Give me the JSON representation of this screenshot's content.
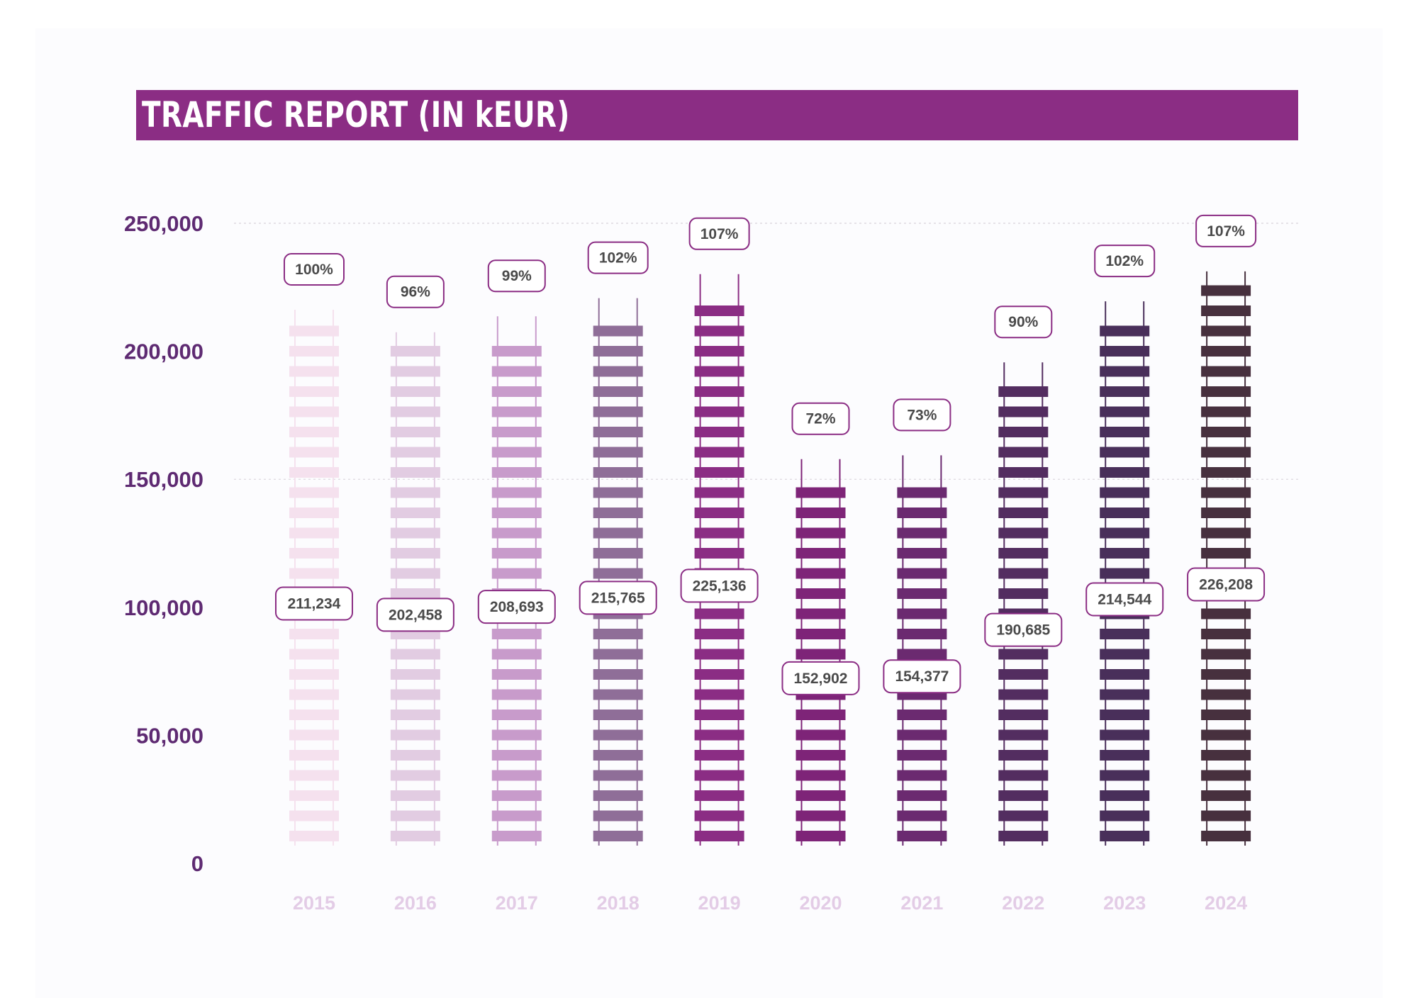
{
  "chart_data": {
    "type": "bar",
    "title": "TRAFFIC REPORT (IN kEUR)",
    "categories": [
      "2015",
      "2016",
      "2017",
      "2018",
      "2019",
      "2020",
      "2021",
      "2022",
      "2023",
      "2024"
    ],
    "values": [
      211234,
      202458,
      208693,
      215765,
      225136,
      152902,
      154377,
      190685,
      214544,
      226208
    ],
    "value_labels": [
      "211,234",
      "202,458",
      "208,693",
      "215,765",
      "225,136",
      "152,902",
      "154,377",
      "190,685",
      "214,544",
      "226,208"
    ],
    "percent_labels": [
      "100%",
      "96%",
      "99%",
      "102%",
      "107%",
      "72%",
      "73%",
      "90%",
      "102%",
      "107%"
    ],
    "bar_colors": [
      "#f5e1ee",
      "#e2cce2",
      "#c89bcb",
      "#8f6e98",
      "#8b2d84",
      "#7e2478",
      "#6b2a70",
      "#532d60",
      "#492f5a",
      "#47303e"
    ],
    "ylim": [
      0,
      250000
    ],
    "yticks": [
      0,
      50000,
      100000,
      150000,
      200000,
      250000
    ],
    "ytick_labels": [
      "0",
      "50,000",
      "100,000",
      "150,000",
      "200,000",
      "250,000"
    ],
    "gridlines_at": [
      150000,
      250000
    ],
    "xlabel": "",
    "ylabel": "",
    "legend": "none"
  },
  "colors": {
    "title_bar": "#8b2d84",
    "title_text": "#ffffff",
    "label_border": "#8b2d84",
    "ytick_text": "#5e2a72",
    "xtick_text": "#e3cce6"
  }
}
